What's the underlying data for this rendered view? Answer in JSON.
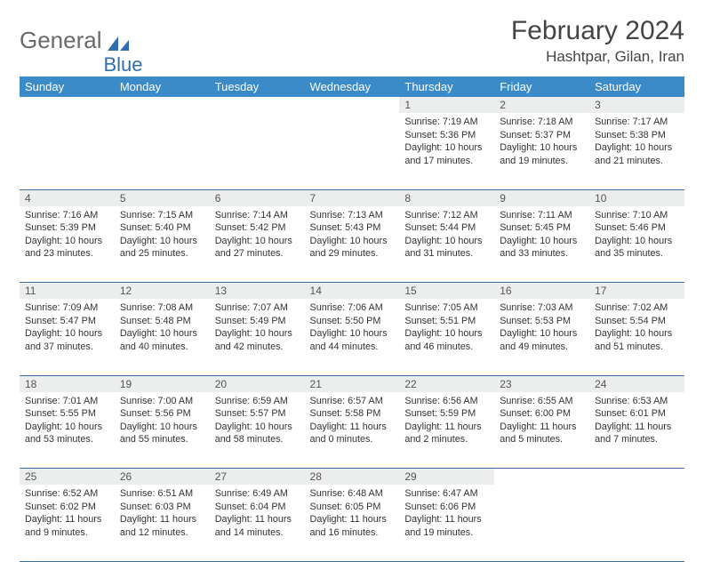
{
  "logo": {
    "text1": "General",
    "text2": "Blue",
    "color_gray": "#6a6a6a",
    "color_blue": "#2f6fae"
  },
  "title": "February 2024",
  "location": "Hashtpar, Gilan, Iran",
  "header_bg": "#3b8bc8",
  "daynum_bg": "#eceded",
  "border_color": "#3b6fa0",
  "day_headers": [
    "Sunday",
    "Monday",
    "Tuesday",
    "Wednesday",
    "Thursday",
    "Friday",
    "Saturday"
  ],
  "weeks": [
    [
      null,
      null,
      null,
      null,
      {
        "n": "1",
        "sr": "7:19 AM",
        "ss": "5:36 PM",
        "dl": "10 hours and 17 minutes."
      },
      {
        "n": "2",
        "sr": "7:18 AM",
        "ss": "5:37 PM",
        "dl": "10 hours and 19 minutes."
      },
      {
        "n": "3",
        "sr": "7:17 AM",
        "ss": "5:38 PM",
        "dl": "10 hours and 21 minutes."
      }
    ],
    [
      {
        "n": "4",
        "sr": "7:16 AM",
        "ss": "5:39 PM",
        "dl": "10 hours and 23 minutes."
      },
      {
        "n": "5",
        "sr": "7:15 AM",
        "ss": "5:40 PM",
        "dl": "10 hours and 25 minutes."
      },
      {
        "n": "6",
        "sr": "7:14 AM",
        "ss": "5:42 PM",
        "dl": "10 hours and 27 minutes."
      },
      {
        "n": "7",
        "sr": "7:13 AM",
        "ss": "5:43 PM",
        "dl": "10 hours and 29 minutes."
      },
      {
        "n": "8",
        "sr": "7:12 AM",
        "ss": "5:44 PM",
        "dl": "10 hours and 31 minutes."
      },
      {
        "n": "9",
        "sr": "7:11 AM",
        "ss": "5:45 PM",
        "dl": "10 hours and 33 minutes."
      },
      {
        "n": "10",
        "sr": "7:10 AM",
        "ss": "5:46 PM",
        "dl": "10 hours and 35 minutes."
      }
    ],
    [
      {
        "n": "11",
        "sr": "7:09 AM",
        "ss": "5:47 PM",
        "dl": "10 hours and 37 minutes."
      },
      {
        "n": "12",
        "sr": "7:08 AM",
        "ss": "5:48 PM",
        "dl": "10 hours and 40 minutes."
      },
      {
        "n": "13",
        "sr": "7:07 AM",
        "ss": "5:49 PM",
        "dl": "10 hours and 42 minutes."
      },
      {
        "n": "14",
        "sr": "7:06 AM",
        "ss": "5:50 PM",
        "dl": "10 hours and 44 minutes."
      },
      {
        "n": "15",
        "sr": "7:05 AM",
        "ss": "5:51 PM",
        "dl": "10 hours and 46 minutes."
      },
      {
        "n": "16",
        "sr": "7:03 AM",
        "ss": "5:53 PM",
        "dl": "10 hours and 49 minutes."
      },
      {
        "n": "17",
        "sr": "7:02 AM",
        "ss": "5:54 PM",
        "dl": "10 hours and 51 minutes."
      }
    ],
    [
      {
        "n": "18",
        "sr": "7:01 AM",
        "ss": "5:55 PM",
        "dl": "10 hours and 53 minutes."
      },
      {
        "n": "19",
        "sr": "7:00 AM",
        "ss": "5:56 PM",
        "dl": "10 hours and 55 minutes."
      },
      {
        "n": "20",
        "sr": "6:59 AM",
        "ss": "5:57 PM",
        "dl": "10 hours and 58 minutes."
      },
      {
        "n": "21",
        "sr": "6:57 AM",
        "ss": "5:58 PM",
        "dl": "11 hours and 0 minutes."
      },
      {
        "n": "22",
        "sr": "6:56 AM",
        "ss": "5:59 PM",
        "dl": "11 hours and 2 minutes."
      },
      {
        "n": "23",
        "sr": "6:55 AM",
        "ss": "6:00 PM",
        "dl": "11 hours and 5 minutes."
      },
      {
        "n": "24",
        "sr": "6:53 AM",
        "ss": "6:01 PM",
        "dl": "11 hours and 7 minutes."
      }
    ],
    [
      {
        "n": "25",
        "sr": "6:52 AM",
        "ss": "6:02 PM",
        "dl": "11 hours and 9 minutes."
      },
      {
        "n": "26",
        "sr": "6:51 AM",
        "ss": "6:03 PM",
        "dl": "11 hours and 12 minutes."
      },
      {
        "n": "27",
        "sr": "6:49 AM",
        "ss": "6:04 PM",
        "dl": "11 hours and 14 minutes."
      },
      {
        "n": "28",
        "sr": "6:48 AM",
        "ss": "6:05 PM",
        "dl": "11 hours and 16 minutes."
      },
      {
        "n": "29",
        "sr": "6:47 AM",
        "ss": "6:06 PM",
        "dl": "11 hours and 19 minutes."
      },
      null,
      null
    ]
  ],
  "labels": {
    "sunrise": "Sunrise: ",
    "sunset": "Sunset: ",
    "daylight": "Daylight: "
  }
}
